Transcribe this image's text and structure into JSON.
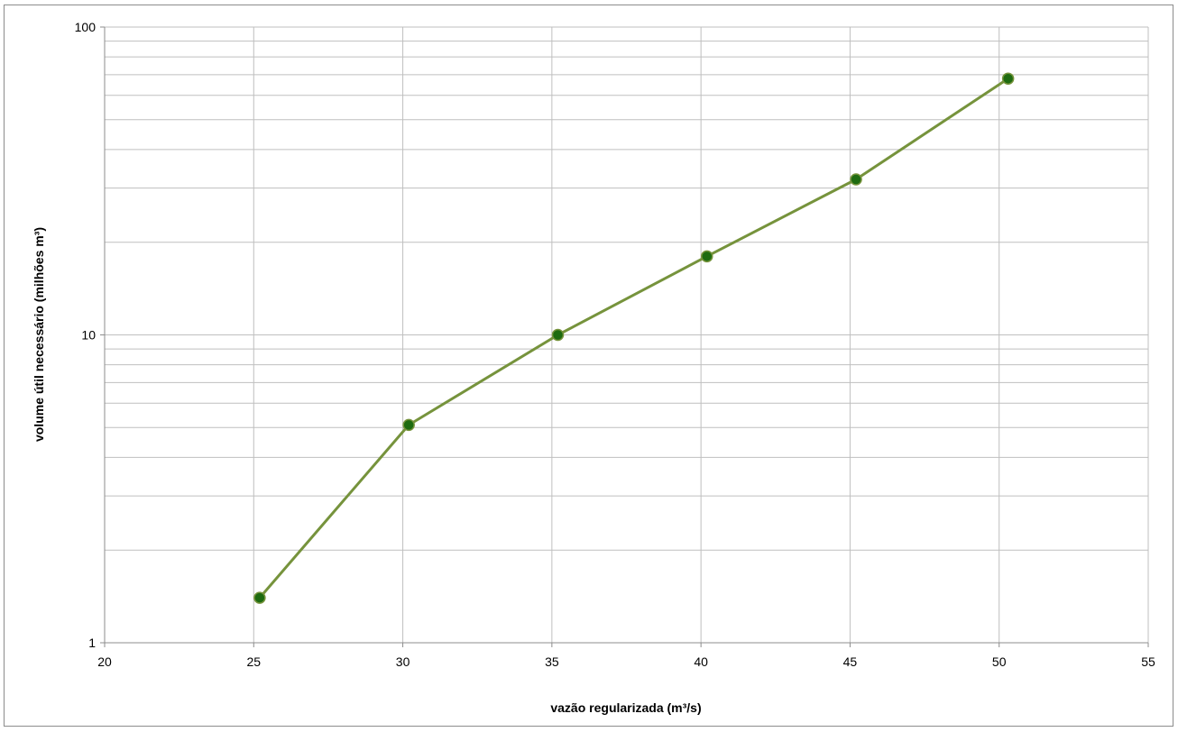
{
  "chart_data": {
    "type": "line",
    "title": "",
    "xlabel": "vazão regularizada (m³/s)",
    "ylabel": "volume útil necessário (milhões m³)",
    "xlim": [
      20,
      55
    ],
    "ylim": [
      1,
      100
    ],
    "y_scale": "log",
    "x_ticks": [
      "20",
      "25",
      "30",
      "35",
      "40",
      "45",
      "50",
      "55"
    ],
    "y_ticks": [
      "1",
      "10",
      "100"
    ],
    "grid": true,
    "legend": "none",
    "series": [
      {
        "x": [
          25.2,
          30.2,
          35.2,
          40.2,
          45.2,
          50.3
        ],
        "y": [
          1.4,
          5.1,
          10.0,
          18.0,
          32.0,
          68.0
        ],
        "line_color": "#76933c",
        "marker_color": "#1e6b10"
      }
    ]
  }
}
